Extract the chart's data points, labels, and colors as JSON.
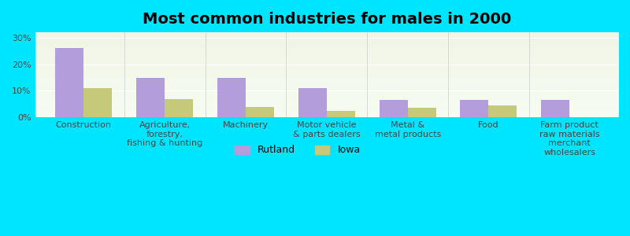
{
  "title": "Most common industries for males in 2000",
  "categories": [
    "Construction",
    "Agriculture,\nforestry,\nfishing & hunting",
    "Machinery",
    "Motor vehicle\n& parts dealers",
    "Metal &\nmetal products",
    "Food",
    "Farm product\nraw materials\nmerchant\nwholesalers"
  ],
  "rutland_values": [
    26.0,
    15.0,
    15.0,
    11.0,
    6.5,
    6.5,
    6.5
  ],
  "iowa_values": [
    11.0,
    7.0,
    4.0,
    2.5,
    3.5,
    4.5,
    0.0
  ],
  "rutland_color": "#b39ddb",
  "iowa_color": "#c5c97a",
  "background_color": "#00e5ff",
  "plot_bg_color": "#f2f5e8",
  "ylabel_ticks": [
    "0%",
    "10%",
    "20%",
    "30%"
  ],
  "ytick_values": [
    0,
    10,
    20,
    30
  ],
  "ylim": [
    0,
    32
  ],
  "bar_width": 0.35,
  "title_fontsize": 14,
  "tick_fontsize": 8,
  "legend_fontsize": 9
}
